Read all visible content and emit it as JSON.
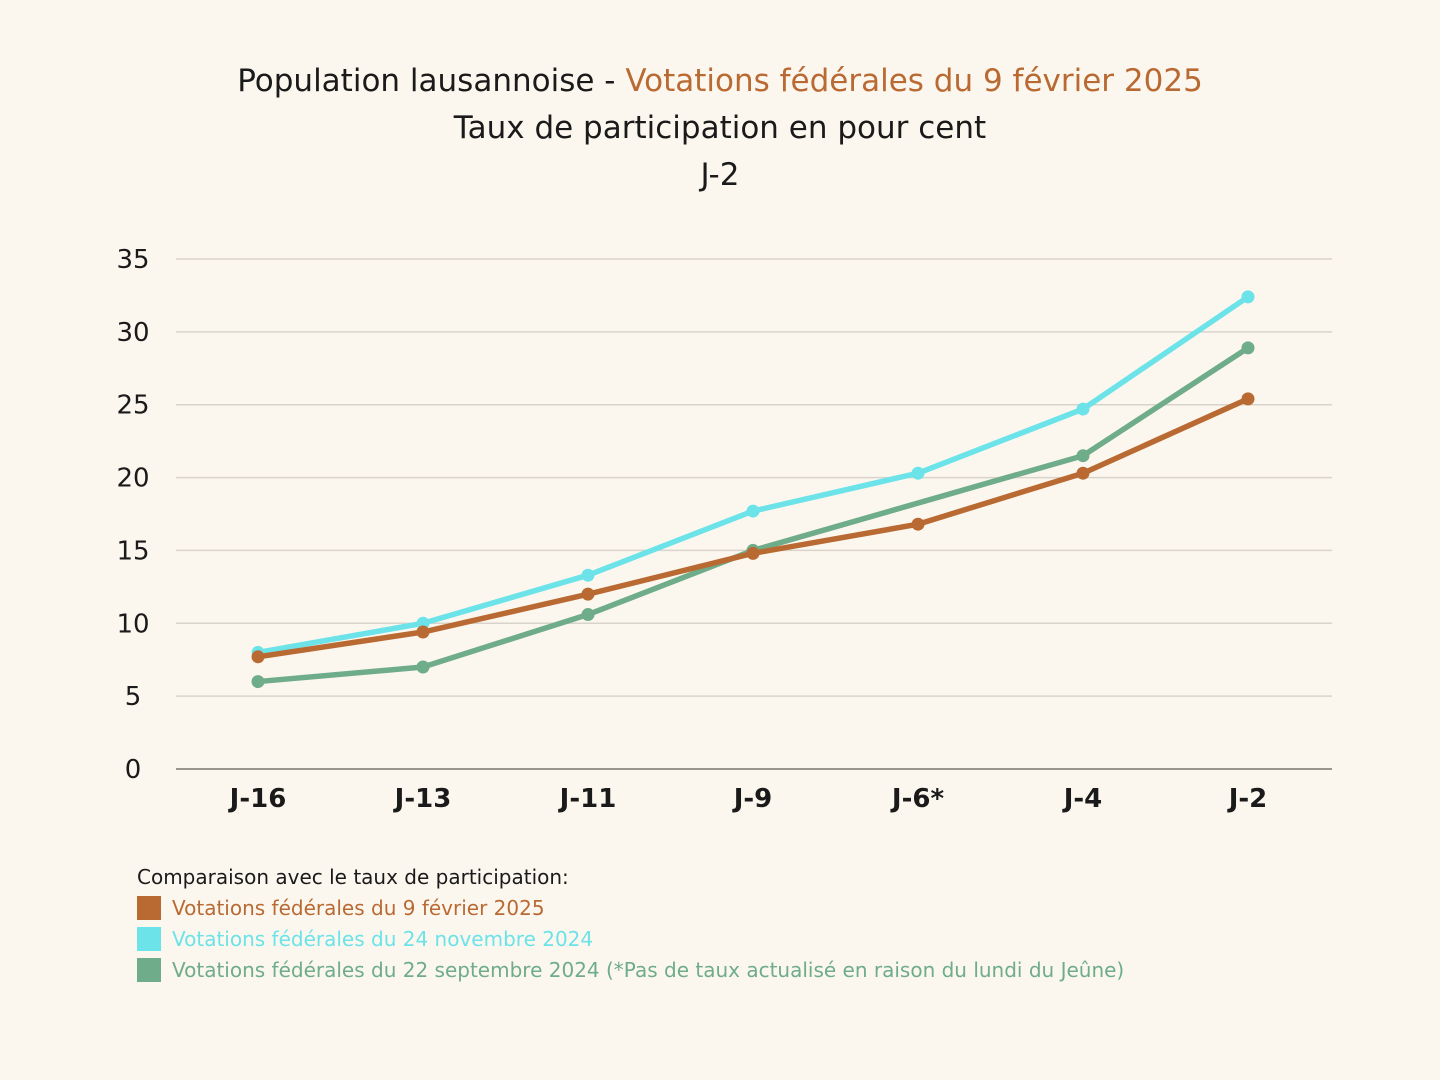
{
  "title": {
    "line1_prefix": "Population lausannoise - ",
    "line1_accent": "Votations fédérales du 9 février 2025",
    "line2": "Taux de participation en pour cent",
    "line3": "J-2"
  },
  "colors": {
    "accent": "#b96a33",
    "feb2025": "#b96a33",
    "nov2024": "#6be3e8",
    "sep2024": "#6eac8a",
    "grid": "#d9d4cb",
    "axis": "#9a958d"
  },
  "legend": {
    "title": "Comparaison avec le taux de participation:",
    "items": [
      {
        "label": "Votations fédérales du 9 février 2025",
        "color": "#b96a33"
      },
      {
        "label": "Votations fédérales du 24 novembre 2024",
        "color": "#6be3e8"
      },
      {
        "label": "Votations fédérales du 22 septembre 2024 (*Pas de taux actualisé en raison du lundi du Jeûne)",
        "color": "#6eac8a"
      }
    ]
  },
  "chart_data": {
    "type": "line",
    "categories": [
      "J-16",
      "J-13",
      "J-11",
      "J-9",
      "J-6*",
      "J-4",
      "J-2"
    ],
    "yticks": [
      0,
      5,
      10,
      15,
      20,
      25,
      30,
      35
    ],
    "ylim": [
      0,
      35
    ],
    "grid": true,
    "legend_position": "bottom-left",
    "series": [
      {
        "name": "Votations fédérales du 24 novembre 2024",
        "color": "#6be3e8",
        "values": [
          8.0,
          10.0,
          13.3,
          17.7,
          20.3,
          24.7,
          32.4
        ]
      },
      {
        "name": "Votations fédérales du 22 septembre 2024 (*Pas de taux actualisé en raison du lundi du Jeûne)",
        "color": "#6eac8a",
        "values": [
          6.0,
          7.0,
          10.6,
          15.0,
          null,
          21.5,
          28.9
        ]
      },
      {
        "name": "Votations fédérales du 9 février 2025",
        "color": "#b96a33",
        "values": [
          7.7,
          9.4,
          12.0,
          14.8,
          16.8,
          20.3,
          25.4
        ]
      }
    ]
  }
}
